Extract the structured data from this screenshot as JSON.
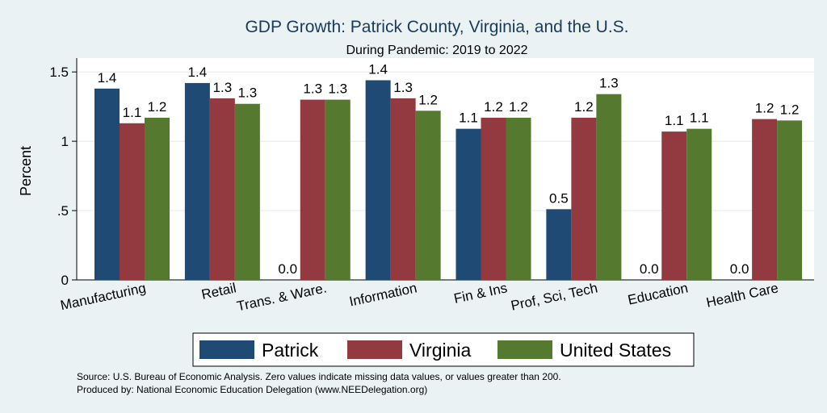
{
  "colors": {
    "patrick": "#1f4a74",
    "virginia": "#923a3f",
    "united_states": "#557a2f",
    "background": "#eaf2f3",
    "plot_background": "#ffffff",
    "title": "#1a3a5c"
  },
  "chart_data": {
    "type": "bar",
    "title": "GDP Growth: Patrick County, Virginia, and the U.S.",
    "subtitle": "During Pandemic: 2019 to 2022",
    "xlabel": "",
    "ylabel": "Percent",
    "ylim": [
      0,
      1.6
    ],
    "yticks": [
      0,
      0.5,
      1,
      1.5
    ],
    "ytick_labels": [
      "0",
      ".5",
      "1",
      "1.5"
    ],
    "grid": true,
    "legend_position": "bottom",
    "categories": [
      "Manufacturing",
      "Retail",
      "Trans. & Ware.",
      "Information",
      "Fin & Ins",
      "Prof, Sci, Tech",
      "Education",
      "Health Care"
    ],
    "series": [
      {
        "name": "Patrick",
        "color_key": "patrick",
        "values": [
          1.38,
          1.42,
          0.0,
          1.44,
          1.09,
          0.51,
          0.0,
          0.0
        ],
        "labels": [
          "1.4",
          "1.4",
          "0.0",
          "1.4",
          "1.1",
          "0.5",
          "0.0",
          "0.0"
        ]
      },
      {
        "name": "Virginia",
        "color_key": "virginia",
        "values": [
          1.13,
          1.31,
          1.3,
          1.31,
          1.17,
          1.17,
          1.07,
          1.16
        ],
        "labels": [
          "1.1",
          "1.3",
          "1.3",
          "1.3",
          "1.2",
          "1.2",
          "1.1",
          "1.2"
        ]
      },
      {
        "name": "United States",
        "color_key": "united_states",
        "values": [
          1.17,
          1.27,
          1.3,
          1.22,
          1.17,
          1.34,
          1.09,
          1.15
        ],
        "labels": [
          "1.2",
          "1.3",
          "1.3",
          "1.2",
          "1.2",
          "1.3",
          "1.1",
          "1.2"
        ]
      }
    ]
  },
  "notes": {
    "source": "Source: U.S. Bureau of Economic Analysis. Zero values indicate missing data values, or values greater than 200.",
    "produced_by": "Produced by: National Economic Education Delegation (www.NEEDelegation.org)"
  }
}
